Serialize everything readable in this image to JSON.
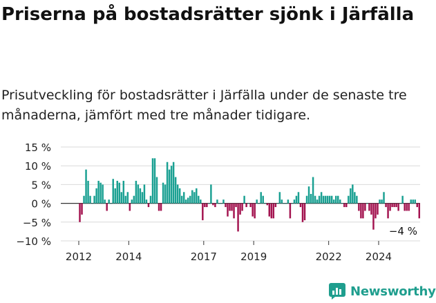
{
  "header": {
    "title": "Priserna på bostadsrätter sjönk i Järfälla",
    "subtitle": "Prisutveckling för bostadsrätter i Järfälla under de senaste tre månaderna, jämfört med tre månader tidigare."
  },
  "brand": {
    "name": "Newsworthy"
  },
  "colors": {
    "positive": "#1aa092",
    "negative": "#a3134f",
    "grid": "#d9d9d9",
    "brand": "#1f9e8e"
  },
  "chart_data": {
    "type": "bar",
    "x_start": "2012-01",
    "x_end": "2024-09",
    "ylim": [
      -10,
      15
    ],
    "yticks": [
      15,
      10,
      5,
      0,
      -5,
      -10
    ],
    "ytick_labels": [
      "15 %",
      "10 %",
      "5 %",
      "0 %",
      "−5 %",
      "−10 %"
    ],
    "xticks": [
      "2012",
      "2014",
      "2017",
      "2019",
      "2022",
      "2024"
    ],
    "grid": true,
    "last_value_label": "−4 %",
    "values": [
      -5,
      -3,
      2,
      9,
      6,
      2,
      0,
      2,
      4,
      6,
      5.5,
      5,
      1,
      -2,
      1,
      0,
      6.5,
      4,
      6,
      5.5,
      3,
      6,
      2,
      3,
      -2,
      1,
      2,
      6,
      5,
      4,
      3,
      5,
      1,
      -1,
      2,
      12,
      12,
      7,
      -2,
      -2,
      5.5,
      5,
      11,
      9,
      10,
      11,
      7,
      5,
      4,
      2,
      3,
      1,
      1.5,
      2,
      3.5,
      3,
      4,
      2,
      1,
      -4.5,
      -1,
      -1,
      0,
      5,
      -0.5,
      -1,
      1,
      0,
      0,
      1,
      -1,
      -3.5,
      -2,
      -2,
      -4,
      -1,
      -7.5,
      -3,
      -2,
      2,
      -1,
      0,
      -1,
      -3.5,
      -4,
      1,
      0,
      3,
      2,
      0,
      -0.5,
      -3.5,
      -4,
      -4,
      -1,
      0,
      3,
      1,
      0,
      0,
      1,
      -4,
      0,
      1,
      2,
      3,
      -1,
      -5,
      -4.5,
      2,
      4.5,
      2.5,
      7,
      2,
      1,
      2,
      3,
      2,
      2,
      2,
      2,
      2,
      1,
      2,
      2,
      1,
      0,
      -1,
      -1,
      2,
      4,
      5,
      3,
      2,
      -2,
      -4,
      -4,
      -2,
      0,
      -2,
      -3,
      -7,
      -4,
      -3,
      1,
      1,
      3,
      -1,
      -4,
      -2,
      -1,
      -1,
      -1,
      -2,
      0,
      2,
      -2,
      -2,
      -2,
      1,
      1,
      1,
      -1,
      -4
    ]
  }
}
